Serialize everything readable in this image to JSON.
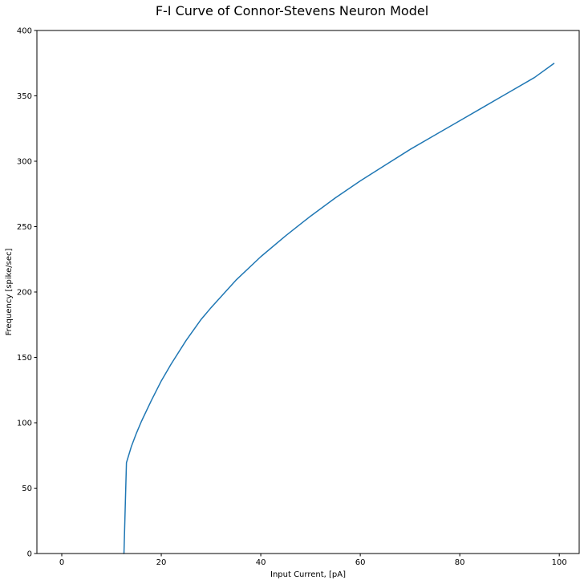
{
  "chart_data": {
    "type": "line",
    "title": "F-I Curve of Connor-Stevens Neuron Model",
    "xlabel": "Input Current, [pA]",
    "ylabel": "Frequency [spike/sec]",
    "xlim": [
      -5,
      104
    ],
    "ylim": [
      0,
      400
    ],
    "xticks": [
      0,
      20,
      40,
      60,
      80,
      100
    ],
    "yticks": [
      0,
      50,
      100,
      150,
      200,
      250,
      300,
      350,
      400
    ],
    "grid": false,
    "line_color": "#1f77b4",
    "series": [
      {
        "x": [
          12.4,
          12.5,
          13,
          14,
          15,
          16,
          18,
          20,
          22,
          25,
          28,
          30,
          35,
          40,
          45,
          50,
          55,
          60,
          65,
          70,
          75,
          80,
          85,
          90,
          95,
          99
        ],
        "values": [
          0,
          0,
          69.5,
          82,
          92,
          101,
          117,
          132,
          145,
          163,
          179,
          188,
          209,
          227,
          243,
          258,
          272,
          285,
          297,
          309,
          320,
          331,
          342,
          353,
          364,
          375
        ]
      }
    ]
  }
}
